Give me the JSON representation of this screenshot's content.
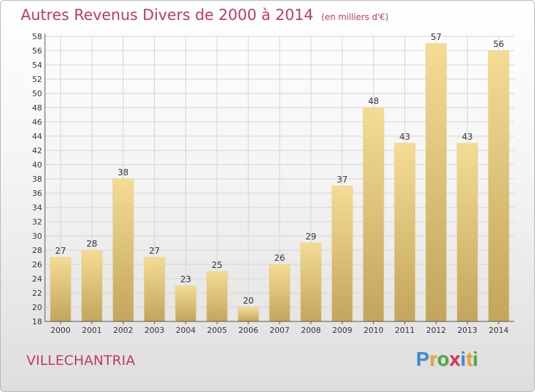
{
  "header": {
    "title": "Autres Revenus Divers de 2000 à 2014",
    "unit": "(en milliers d'€)"
  },
  "footer": {
    "commune": "VILLECHANTRIA",
    "logo": {
      "letters": [
        "P",
        "r",
        "o",
        "x",
        "i",
        "t",
        "i"
      ],
      "colors": [
        "#3a8fd8",
        "#e8a52a",
        "#4aaa3c",
        "#d8334a",
        "#3a8fd8",
        "#e8a52a",
        "#4aaa3c"
      ]
    }
  },
  "colors": {
    "bar_top": "#f4dc94",
    "bar_bottom": "#c3a55d",
    "bar_edge": "#e6cf85",
    "grid": "#d4d4d4",
    "title": "#c2366e"
  },
  "chart_data": {
    "type": "bar",
    "categories": [
      "2000",
      "2001",
      "2002",
      "2003",
      "2004",
      "2005",
      "2006",
      "2007",
      "2008",
      "2009",
      "2010",
      "2011",
      "2012",
      "2013",
      "2014"
    ],
    "values": [
      27,
      28,
      38,
      27,
      23,
      25,
      20,
      26,
      29,
      37,
      48,
      43,
      57,
      43,
      56
    ],
    "title": "Autres Revenus Divers de 2000 à 2014",
    "xlabel": "",
    "ylabel": "",
    "ylim": [
      18,
      58
    ],
    "yticks": [
      18,
      20,
      22,
      24,
      26,
      28,
      30,
      32,
      34,
      36,
      38,
      40,
      42,
      44,
      46,
      48,
      50,
      52,
      54,
      56,
      58
    ],
    "grid": true,
    "legend": "none"
  }
}
